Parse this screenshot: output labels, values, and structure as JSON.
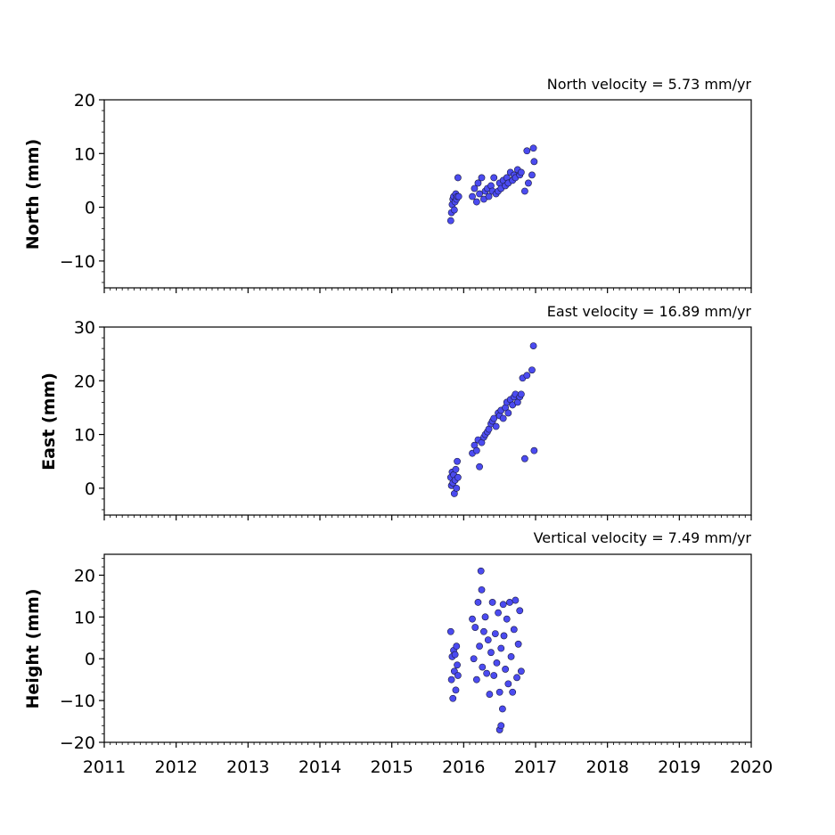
{
  "chart_data": [
    {
      "type": "scatter",
      "title": "North velocity = 5.73 mm/yr",
      "ylabel": "North (mm)",
      "xlim": [
        2011,
        2020
      ],
      "ylim": [
        -15,
        20
      ],
      "yticks": [
        "20",
        "10",
        "0",
        "−10"
      ],
      "xticks": [],
      "marker_color": "#4b4bf0",
      "series": [
        {
          "x": [
            2015.82,
            2015.83,
            2015.84,
            2015.85,
            2015.86,
            2015.87,
            2015.88,
            2015.89,
            2015.9,
            2015.91,
            2015.92,
            2015.93,
            2016.12,
            2016.15,
            2016.18,
            2016.2,
            2016.22,
            2016.25,
            2016.28,
            2016.3,
            2016.33,
            2016.35,
            2016.38,
            2016.4,
            2016.42,
            2016.45,
            2016.48,
            2016.5,
            2016.52,
            2016.55,
            2016.58,
            2016.6,
            2016.62,
            2016.65,
            2016.68,
            2016.7,
            2016.72,
            2016.75,
            2016.78,
            2016.8,
            2016.85,
            2016.88,
            2016.9,
            2016.95,
            2016.97,
            2016.98
          ],
          "y": [
            -2.5,
            -1.0,
            0.5,
            1.5,
            2.0,
            -0.5,
            1.0,
            2.5,
            1.5,
            2.0,
            5.5,
            2.0,
            2.0,
            3.5,
            1.0,
            4.5,
            2.5,
            5.5,
            1.5,
            3.0,
            3.5,
            2.0,
            4.0,
            3.0,
            5.5,
            2.5,
            3.0,
            4.5,
            3.5,
            5.0,
            4.0,
            5.5,
            4.5,
            6.5,
            5.0,
            6.0,
            5.5,
            7.0,
            6.0,
            6.5,
            3.0,
            10.5,
            4.5,
            6.0,
            11.0,
            8.5
          ]
        }
      ]
    },
    {
      "type": "scatter",
      "title": "East velocity = 16.89 mm/yr",
      "ylabel": "East (mm)",
      "xlim": [
        2011,
        2020
      ],
      "ylim": [
        -5,
        30
      ],
      "yticks": [
        "30",
        "20",
        "10",
        "0"
      ],
      "xticks": [],
      "marker_color": "#4b4bf0",
      "series": [
        {
          "x": [
            2015.82,
            2015.83,
            2015.84,
            2015.85,
            2015.86,
            2015.87,
            2015.88,
            2015.89,
            2015.9,
            2015.91,
            2015.92,
            2016.12,
            2016.15,
            2016.18,
            2016.2,
            2016.22,
            2016.25,
            2016.28,
            2016.3,
            2016.33,
            2016.35,
            2016.38,
            2016.4,
            2016.42,
            2016.45,
            2016.48,
            2016.5,
            2016.52,
            2016.55,
            2016.58,
            2016.6,
            2016.62,
            2016.65,
            2016.68,
            2016.7,
            2016.72,
            2016.75,
            2016.78,
            2016.8,
            2016.82,
            2016.85,
            2016.88,
            2016.95,
            2016.97,
            2016.98
          ],
          "y": [
            2.0,
            0.5,
            3.0,
            1.0,
            2.5,
            -1.0,
            1.5,
            3.5,
            0.0,
            5.0,
            2.0,
            6.5,
            8.0,
            7.0,
            9.0,
            4.0,
            8.5,
            9.5,
            10.0,
            10.5,
            11.0,
            12.0,
            12.5,
            13.0,
            11.5,
            14.0,
            13.5,
            14.5,
            13.0,
            15.0,
            16.0,
            14.0,
            16.5,
            15.5,
            17.0,
            17.5,
            16.0,
            17.0,
            17.5,
            20.5,
            5.5,
            21.0,
            22.0,
            26.5,
            7.0
          ]
        }
      ]
    },
    {
      "type": "scatter",
      "title": "Vertical velocity = 7.49 mm/yr",
      "ylabel": "Height (mm)",
      "xlim": [
        2011,
        2020
      ],
      "ylim": [
        -20,
        25
      ],
      "yticks": [
        "20",
        "10",
        "0",
        "−10",
        "−20"
      ],
      "xticks": [
        "2011",
        "2012",
        "2013",
        "2014",
        "2015",
        "2016",
        "2017",
        "2018",
        "2019",
        "2020"
      ],
      "marker_color": "#4b4bf0",
      "series": [
        {
          "x": [
            2015.82,
            2015.83,
            2015.84,
            2015.85,
            2015.86,
            2015.87,
            2015.88,
            2015.89,
            2015.9,
            2015.91,
            2015.92,
            2016.12,
            2016.14,
            2016.16,
            2016.18,
            2016.2,
            2016.22,
            2016.24,
            2016.26,
            2016.28,
            2016.3,
            2016.32,
            2016.34,
            2016.36,
            2016.38,
            2016.4,
            2016.42,
            2016.44,
            2016.46,
            2016.48,
            2016.5,
            2016.52,
            2016.54,
            2016.56,
            2016.58,
            2016.6,
            2016.62,
            2016.64,
            2016.66,
            2016.68,
            2016.7,
            2016.72,
            2016.74,
            2016.76,
            2016.78,
            2016.8,
            2016.25,
            2016.5,
            2016.52,
            2016.55
          ],
          "y": [
            6.5,
            -5.0,
            0.5,
            -9.5,
            2.0,
            -3.0,
            1.0,
            -7.5,
            3.0,
            -1.5,
            -4.0,
            9.5,
            0.0,
            7.5,
            -5.0,
            13.5,
            3.0,
            21.0,
            -2.0,
            6.5,
            10.0,
            -3.5,
            4.5,
            -8.5,
            1.5,
            13.5,
            -4.0,
            6.0,
            -1.0,
            11.0,
            -8.0,
            2.5,
            -12.0,
            5.5,
            -2.5,
            9.5,
            -6.0,
            13.5,
            0.5,
            -8.0,
            7.0,
            14.0,
            -4.5,
            3.5,
            11.5,
            -3.0,
            16.5,
            -17.0,
            -16.0,
            13.0
          ]
        }
      ]
    }
  ]
}
